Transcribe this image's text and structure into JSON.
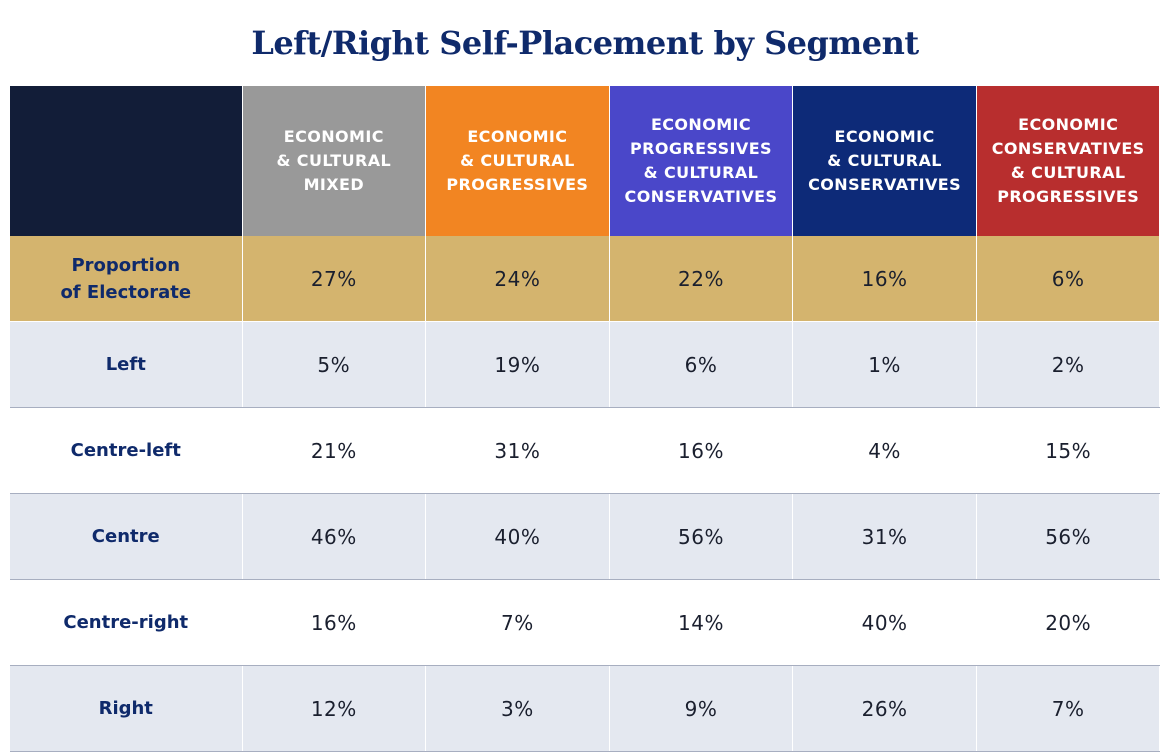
{
  "chart_data": {
    "type": "table",
    "title": "Left/Right Self-Placement by Segment",
    "header_colors": [
      "#121d38",
      "#999999",
      "#f28522",
      "#4a47c9",
      "#0d2a78",
      "#b82e2e"
    ],
    "columns": [
      {
        "lines": [
          "ECONOMIC",
          "& CULTURAL",
          "MIXED"
        ]
      },
      {
        "lines": [
          "ECONOMIC",
          "& CULTURAL",
          "PROGRESSIVES"
        ]
      },
      {
        "lines": [
          "ECONOMIC",
          "PROGRESSIVES",
          "& CULTURAL",
          "CONSERVATIVES"
        ]
      },
      {
        "lines": [
          "ECONOMIC",
          "& CULTURAL",
          "CONSERVATIVES"
        ]
      },
      {
        "lines": [
          "ECONOMIC",
          "CONSERVATIVES",
          "& CULTURAL",
          "PROGRESSIVES"
        ]
      }
    ],
    "rows": [
      {
        "label_lines": [
          "Proportion",
          "of Electorate"
        ],
        "values": [
          "27%",
          "24%",
          "22%",
          "16%",
          "6%"
        ]
      },
      {
        "label_lines": [
          "Left"
        ],
        "values": [
          "5%",
          "19%",
          "6%",
          "1%",
          "2%"
        ]
      },
      {
        "label_lines": [
          "Centre-left"
        ],
        "values": [
          "21%",
          "31%",
          "16%",
          "4%",
          "15%"
        ]
      },
      {
        "label_lines": [
          "Centre"
        ],
        "values": [
          "46%",
          "40%",
          "56%",
          "31%",
          "56%"
        ]
      },
      {
        "label_lines": [
          "Centre-right"
        ],
        "values": [
          "16%",
          "7%",
          "14%",
          "40%",
          "20%"
        ]
      },
      {
        "label_lines": [
          "Right"
        ],
        "values": [
          "12%",
          "3%",
          "9%",
          "26%",
          "7%"
        ]
      }
    ]
  }
}
